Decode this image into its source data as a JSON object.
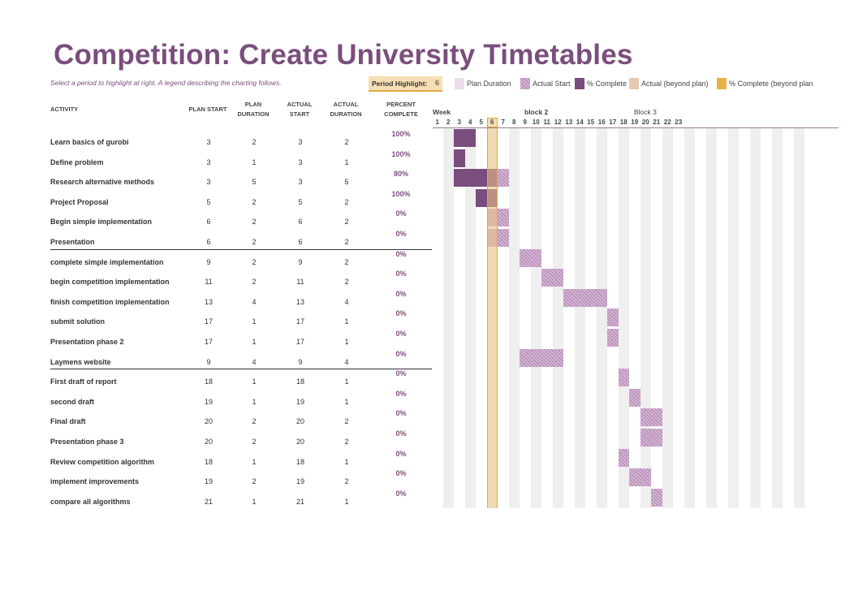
{
  "title": "Competition: Create University Timetables",
  "subtitle": "Select a period to highlight at right.  A legend describing the charting follows.",
  "period_highlight": {
    "label": "Period Highlight:",
    "value": "6"
  },
  "legend": [
    {
      "label": "Plan Duration",
      "type": "plan"
    },
    {
      "label": "Actual Start",
      "type": "actual"
    },
    {
      "label": "% Complete",
      "type": "complete"
    },
    {
      "label": "Actual (beyond plan)",
      "type": "beyond"
    },
    {
      "label": "% Complete (beyond plan",
      "type": "beyond-complete"
    }
  ],
  "headers": {
    "activity": "ACTIVITY",
    "plan_start": "PLAN START",
    "plan_duration": [
      "PLAN",
      "DURATION"
    ],
    "actual_start": [
      "ACTUAL",
      "START"
    ],
    "actual_duration": [
      "ACTUAL",
      "DURATION"
    ],
    "percent_complete": [
      "PERCENT",
      "COMPLETE"
    ],
    "week": "Week",
    "blocks": [
      "block 2",
      "Block 3"
    ]
  },
  "weeks": [
    1,
    2,
    3,
    4,
    5,
    6,
    7,
    8,
    9,
    10,
    11,
    12,
    13,
    14,
    15,
    16,
    17,
    18,
    19,
    20,
    21,
    22,
    23
  ],
  "colors": {
    "accent": "#7a4e7c",
    "highlight": "#f7dfb4",
    "highlight_border": "#e0a840"
  },
  "activities": [
    {
      "name": "Learn basics of gurobi",
      "plan_start": 3,
      "plan_duration": 2,
      "actual_start": 3,
      "actual_duration": 2,
      "percent": "100%",
      "pct": 100
    },
    {
      "name": "Define problem",
      "plan_start": 3,
      "plan_duration": 1,
      "actual_start": 3,
      "actual_duration": 1,
      "percent": "100%",
      "pct": 100
    },
    {
      "name": "Research alternative methods",
      "plan_start": 3,
      "plan_duration": 5,
      "actual_start": 3,
      "actual_duration": 5,
      "percent": "80%",
      "pct": 80
    },
    {
      "name": "Project Proposal",
      "plan_start": 5,
      "plan_duration": 2,
      "actual_start": 5,
      "actual_duration": 2,
      "percent": "100%",
      "pct": 100
    },
    {
      "name": "Begin simple implementation",
      "plan_start": 6,
      "plan_duration": 2,
      "actual_start": 6,
      "actual_duration": 2,
      "percent": "0%",
      "pct": 0
    },
    {
      "name": "Presentation",
      "plan_start": 6,
      "plan_duration": 2,
      "actual_start": 6,
      "actual_duration": 2,
      "percent": "0%",
      "pct": 0
    },
    {
      "name": "complete simple implementation",
      "plan_start": 9,
      "plan_duration": 2,
      "actual_start": 9,
      "actual_duration": 2,
      "percent": "0%",
      "pct": 0
    },
    {
      "name": "begin competition implementation",
      "plan_start": 11,
      "plan_duration": 2,
      "actual_start": 11,
      "actual_duration": 2,
      "percent": "0%",
      "pct": 0
    },
    {
      "name": "finish competition implementation",
      "plan_start": 13,
      "plan_duration": 4,
      "actual_start": 13,
      "actual_duration": 4,
      "percent": "0%",
      "pct": 0
    },
    {
      "name": "submit solution",
      "plan_start": 17,
      "plan_duration": 1,
      "actual_start": 17,
      "actual_duration": 1,
      "percent": "0%",
      "pct": 0
    },
    {
      "name": "Presentation phase 2",
      "plan_start": 17,
      "plan_duration": 1,
      "actual_start": 17,
      "actual_duration": 1,
      "percent": "0%",
      "pct": 0
    },
    {
      "name": "Laymens website",
      "plan_start": 9,
      "plan_duration": 4,
      "actual_start": 9,
      "actual_duration": 4,
      "percent": "0%",
      "pct": 0
    },
    {
      "name": "First draft of report",
      "plan_start": 18,
      "plan_duration": 1,
      "actual_start": 18,
      "actual_duration": 1,
      "percent": "0%",
      "pct": 0
    },
    {
      "name": "second draft",
      "plan_start": 19,
      "plan_duration": 1,
      "actual_start": 19,
      "actual_duration": 1,
      "percent": "0%",
      "pct": 0
    },
    {
      "name": "Final draft",
      "plan_start": 20,
      "plan_duration": 2,
      "actual_start": 20,
      "actual_duration": 2,
      "percent": "0%",
      "pct": 0
    },
    {
      "name": "Presentation phase 3",
      "plan_start": 20,
      "plan_duration": 2,
      "actual_start": 20,
      "actual_duration": 2,
      "percent": "0%",
      "pct": 0
    },
    {
      "name": "Review competition algorithm",
      "plan_start": 18,
      "plan_duration": 1,
      "actual_start": 18,
      "actual_duration": 1,
      "percent": "0%",
      "pct": 0
    },
    {
      "name": "implement improvements",
      "plan_start": 19,
      "plan_duration": 2,
      "actual_start": 19,
      "actual_duration": 2,
      "percent": "0%",
      "pct": 0
    },
    {
      "name": "compare all algorithms",
      "plan_start": 21,
      "plan_duration": 1,
      "actual_start": 21,
      "actual_duration": 1,
      "percent": "0%",
      "pct": 0
    }
  ]
}
